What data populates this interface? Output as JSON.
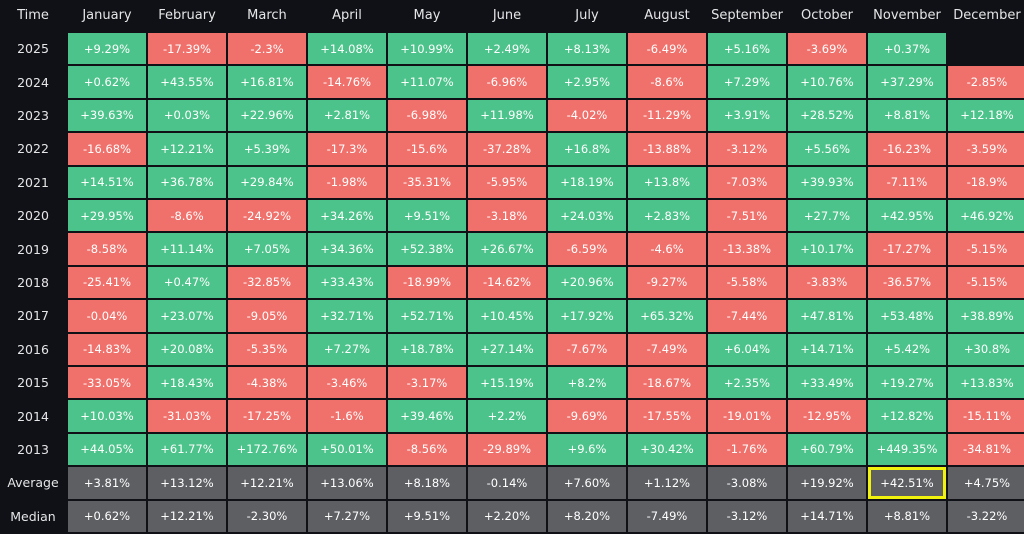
{
  "chart_data": {
    "type": "table",
    "corner_label": "Time",
    "columns": [
      "January",
      "February",
      "March",
      "April",
      "May",
      "June",
      "July",
      "August",
      "September",
      "October",
      "November",
      "December"
    ],
    "rows": [
      {
        "label": "2025",
        "values": [
          "+9.29%",
          "-17.39%",
          "-2.3%",
          "+14.08%",
          "+10.99%",
          "+2.49%",
          "+8.13%",
          "-6.49%",
          "+5.16%",
          "-3.69%",
          "+0.37%",
          ""
        ]
      },
      {
        "label": "2024",
        "values": [
          "+0.62%",
          "+43.55%",
          "+16.81%",
          "-14.76%",
          "+11.07%",
          "-6.96%",
          "+2.95%",
          "-8.6%",
          "+7.29%",
          "+10.76%",
          "+37.29%",
          "-2.85%"
        ]
      },
      {
        "label": "2023",
        "values": [
          "+39.63%",
          "+0.03%",
          "+22.96%",
          "+2.81%",
          "-6.98%",
          "+11.98%",
          "-4.02%",
          "-11.29%",
          "+3.91%",
          "+28.52%",
          "+8.81%",
          "+12.18%"
        ]
      },
      {
        "label": "2022",
        "values": [
          "-16.68%",
          "+12.21%",
          "+5.39%",
          "-17.3%",
          "-15.6%",
          "-37.28%",
          "+16.8%",
          "-13.88%",
          "-3.12%",
          "+5.56%",
          "-16.23%",
          "-3.59%"
        ]
      },
      {
        "label": "2021",
        "values": [
          "+14.51%",
          "+36.78%",
          "+29.84%",
          "-1.98%",
          "-35.31%",
          "-5.95%",
          "+18.19%",
          "+13.8%",
          "-7.03%",
          "+39.93%",
          "-7.11%",
          "-18.9%"
        ]
      },
      {
        "label": "2020",
        "values": [
          "+29.95%",
          "-8.6%",
          "-24.92%",
          "+34.26%",
          "+9.51%",
          "-3.18%",
          "+24.03%",
          "+2.83%",
          "-7.51%",
          "+27.7%",
          "+42.95%",
          "+46.92%"
        ]
      },
      {
        "label": "2019",
        "values": [
          "-8.58%",
          "+11.14%",
          "+7.05%",
          "+34.36%",
          "+52.38%",
          "+26.67%",
          "-6.59%",
          "-4.6%",
          "-13.38%",
          "+10.17%",
          "-17.27%",
          "-5.15%"
        ]
      },
      {
        "label": "2018",
        "values": [
          "-25.41%",
          "+0.47%",
          "-32.85%",
          "+33.43%",
          "-18.99%",
          "-14.62%",
          "+20.96%",
          "-9.27%",
          "-5.58%",
          "-3.83%",
          "-36.57%",
          "-5.15%"
        ]
      },
      {
        "label": "2017",
        "values": [
          "-0.04%",
          "+23.07%",
          "-9.05%",
          "+32.71%",
          "+52.71%",
          "+10.45%",
          "+17.92%",
          "+65.32%",
          "-7.44%",
          "+47.81%",
          "+53.48%",
          "+38.89%"
        ]
      },
      {
        "label": "2016",
        "values": [
          "-14.83%",
          "+20.08%",
          "-5.35%",
          "+7.27%",
          "+18.78%",
          "+27.14%",
          "-7.67%",
          "-7.49%",
          "+6.04%",
          "+14.71%",
          "+5.42%",
          "+30.8%"
        ]
      },
      {
        "label": "2015",
        "values": [
          "-33.05%",
          "+18.43%",
          "-4.38%",
          "-3.46%",
          "-3.17%",
          "+15.19%",
          "+8.2%",
          "-18.67%",
          "+2.35%",
          "+33.49%",
          "+19.27%",
          "+13.83%"
        ]
      },
      {
        "label": "2014",
        "values": [
          "+10.03%",
          "-31.03%",
          "-17.25%",
          "-1.6%",
          "+39.46%",
          "+2.2%",
          "-9.69%",
          "-17.55%",
          "-19.01%",
          "-12.95%",
          "+12.82%",
          "-15.11%"
        ]
      },
      {
        "label": "2013",
        "values": [
          "+44.05%",
          "+61.77%",
          "+172.76%",
          "+50.01%",
          "-8.56%",
          "-29.89%",
          "+9.6%",
          "+30.42%",
          "-1.76%",
          "+60.79%",
          "+449.35%",
          "-34.81%"
        ]
      }
    ],
    "summary_rows": [
      {
        "label": "Average",
        "values": [
          "+3.81%",
          "+13.12%",
          "+12.21%",
          "+13.06%",
          "+8.18%",
          "-0.14%",
          "+7.60%",
          "+1.12%",
          "-3.08%",
          "+19.92%",
          "+42.51%",
          "+4.75%"
        ],
        "highlight_column": "November"
      },
      {
        "label": "Median",
        "values": [
          "+0.62%",
          "+12.21%",
          "-2.30%",
          "+7.27%",
          "+9.51%",
          "+2.20%",
          "+8.20%",
          "-7.49%",
          "-3.12%",
          "+14.71%",
          "+8.81%",
          "-3.22%"
        ]
      }
    ],
    "colors": {
      "positive": "#4cc38a",
      "negative": "#f0716b",
      "summary": "#5e5f63",
      "highlight": "#f2f20f",
      "background": "#0f1117"
    }
  }
}
